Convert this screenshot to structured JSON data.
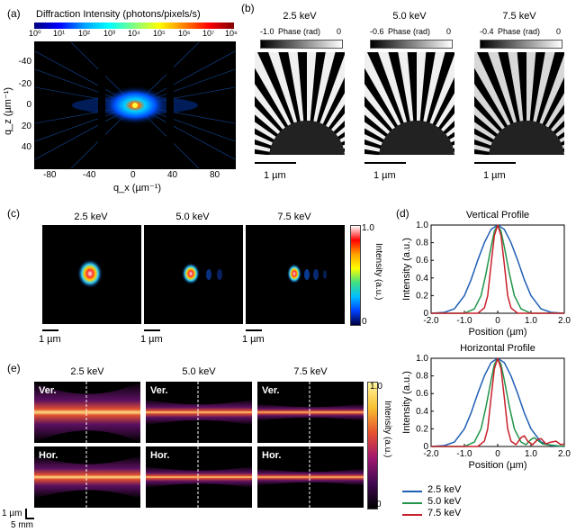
{
  "panel_labels": {
    "a": "(a)",
    "b": "(b)",
    "c": "(c)",
    "d": "(d)",
    "e": "(e)"
  },
  "panel_a": {
    "title": "Diffraction Intensity (photons/pixels/s)",
    "colorbar_ticks": [
      "10⁰",
      "10¹",
      "10²",
      "10³",
      "10⁴",
      "10⁵",
      "10⁶",
      "10⁷",
      "10⁸"
    ],
    "ylabel": "q_z (µm⁻¹)",
    "xlabel": "q_x (µm⁻¹)",
    "yticks": [
      "-40",
      "-20",
      "0",
      "20",
      "40"
    ],
    "xticks": [
      "-80",
      "-40",
      "0",
      "40",
      "80"
    ]
  },
  "panel_b": {
    "energies": [
      "2.5 keV",
      "5.0 keV",
      "7.5 keV"
    ],
    "phase_label": "Phase (rad)",
    "phase_min": [
      "-1.0",
      "-0.6",
      "-0.4"
    ],
    "phase_max": [
      "0",
      "0",
      "0"
    ],
    "scalebar": "1 µm"
  },
  "panel_c": {
    "energies": [
      "2.5 keV",
      "5.0 keV",
      "7.5 keV"
    ],
    "colorbar_label": "Intensity (a.u.)",
    "colorbar_top": "1.0",
    "colorbar_bottom": "0",
    "scalebar": "1 µm"
  },
  "panel_d": {
    "ylabel": "Intensity (a.u.)",
    "xlabel": "Position (µm)",
    "legend": [
      "2.5 keV",
      "5.0 keV",
      "7.5 keV"
    ],
    "colors": [
      "#1f5fb4",
      "#21944a",
      "#c8202a"
    ]
  },
  "panel_e": {
    "energies": [
      "2.5 keV",
      "5.0 keV",
      "7.5 keV"
    ],
    "row_labels": [
      "Ver.",
      "Hor."
    ],
    "colorbar_label": "Intensity (a.u.)",
    "colorbar_top": "1.0",
    "colorbar_bottom": "0",
    "scale_v": "1 µm",
    "scale_h": "5 mm"
  },
  "chart_data": [
    {
      "type": "line",
      "title": "Vertical Profile",
      "xlabel": "Position (µm)",
      "ylabel": "Intensity (a.u.)",
      "xlim": [
        -2.0,
        2.0
      ],
      "ylim": [
        0,
        1.0
      ],
      "xticks": [
        "-2.0",
        "-1.0",
        "0",
        "1.0",
        "2.0"
      ],
      "yticks": [
        "0",
        "0.2",
        "0.4",
        "0.6",
        "0.8",
        "1.0"
      ],
      "series": [
        {
          "name": "2.5 keV",
          "color": "#1f5fb4",
          "x": [
            -2.0,
            -1.6,
            -1.3,
            -1.0,
            -0.8,
            -0.6,
            -0.4,
            -0.2,
            0,
            0.2,
            0.4,
            0.6,
            0.8,
            1.0,
            1.3,
            1.6,
            2.0
          ],
          "y": [
            0.0,
            0.01,
            0.05,
            0.2,
            0.38,
            0.6,
            0.8,
            0.95,
            1.0,
            0.95,
            0.8,
            0.6,
            0.38,
            0.2,
            0.05,
            0.01,
            0.0
          ]
        },
        {
          "name": "5.0 keV",
          "color": "#21944a",
          "x": [
            -2.0,
            -1.0,
            -0.7,
            -0.5,
            -0.35,
            -0.2,
            -0.1,
            0,
            0.1,
            0.2,
            0.35,
            0.5,
            0.7,
            1.0,
            2.0
          ],
          "y": [
            0.0,
            0.0,
            0.05,
            0.2,
            0.45,
            0.75,
            0.93,
            1.0,
            0.93,
            0.75,
            0.45,
            0.2,
            0.05,
            0.0,
            0.0
          ]
        },
        {
          "name": "7.5 keV",
          "color": "#c8202a",
          "x": [
            -2.0,
            -0.6,
            -0.4,
            -0.3,
            -0.2,
            -0.1,
            0,
            0.1,
            0.2,
            0.3,
            0.4,
            0.6,
            2.0
          ],
          "y": [
            0.0,
            0.0,
            0.06,
            0.2,
            0.55,
            0.88,
            1.0,
            0.88,
            0.55,
            0.2,
            0.06,
            0.0,
            0.0
          ]
        }
      ]
    },
    {
      "type": "line",
      "title": "Horizontal Profile",
      "xlabel": "Position (µm)",
      "ylabel": "Intensity (a.u.)",
      "xlim": [
        -2.0,
        2.0
      ],
      "ylim": [
        0,
        1.0
      ],
      "xticks": [
        "-2.0",
        "-1.0",
        "0",
        "1.0",
        "2.0"
      ],
      "yticks": [
        "0",
        "0.2",
        "0.4",
        "0.6",
        "0.8",
        "1.0"
      ],
      "series": [
        {
          "name": "2.5 keV",
          "color": "#1f5fb4",
          "x": [
            -2.0,
            -1.6,
            -1.3,
            -1.0,
            -0.8,
            -0.6,
            -0.4,
            -0.2,
            0,
            0.2,
            0.4,
            0.6,
            0.8,
            1.0,
            1.3,
            1.6,
            2.0
          ],
          "y": [
            0.0,
            0.01,
            0.05,
            0.2,
            0.38,
            0.6,
            0.8,
            0.95,
            1.0,
            0.95,
            0.8,
            0.6,
            0.38,
            0.2,
            0.05,
            0.01,
            0.0
          ]
        },
        {
          "name": "5.0 keV",
          "color": "#21944a",
          "x": [
            -2.0,
            -1.0,
            -0.7,
            -0.5,
            -0.35,
            -0.2,
            -0.1,
            0,
            0.1,
            0.2,
            0.35,
            0.5,
            0.7,
            0.85,
            1.0,
            1.1,
            1.2,
            1.35,
            1.5,
            2.0
          ],
          "y": [
            0.0,
            0.0,
            0.05,
            0.2,
            0.45,
            0.75,
            0.93,
            1.0,
            0.93,
            0.75,
            0.45,
            0.2,
            0.05,
            0.02,
            0.08,
            0.1,
            0.07,
            0.03,
            0.02,
            0.0
          ]
        },
        {
          "name": "7.5 keV",
          "color": "#c8202a",
          "x": [
            -2.0,
            -0.6,
            -0.4,
            -0.3,
            -0.2,
            -0.1,
            0,
            0.1,
            0.2,
            0.3,
            0.4,
            0.55,
            0.7,
            0.8,
            0.9,
            1.05,
            1.2,
            1.3,
            1.45,
            1.6,
            1.75,
            1.9,
            2.0
          ],
          "y": [
            0.0,
            0.0,
            0.06,
            0.2,
            0.55,
            0.88,
            1.0,
            0.88,
            0.55,
            0.2,
            0.06,
            0.02,
            0.1,
            0.12,
            0.06,
            0.02,
            0.08,
            0.09,
            0.03,
            0.05,
            0.06,
            0.02,
            0.03
          ]
        }
      ]
    }
  ]
}
